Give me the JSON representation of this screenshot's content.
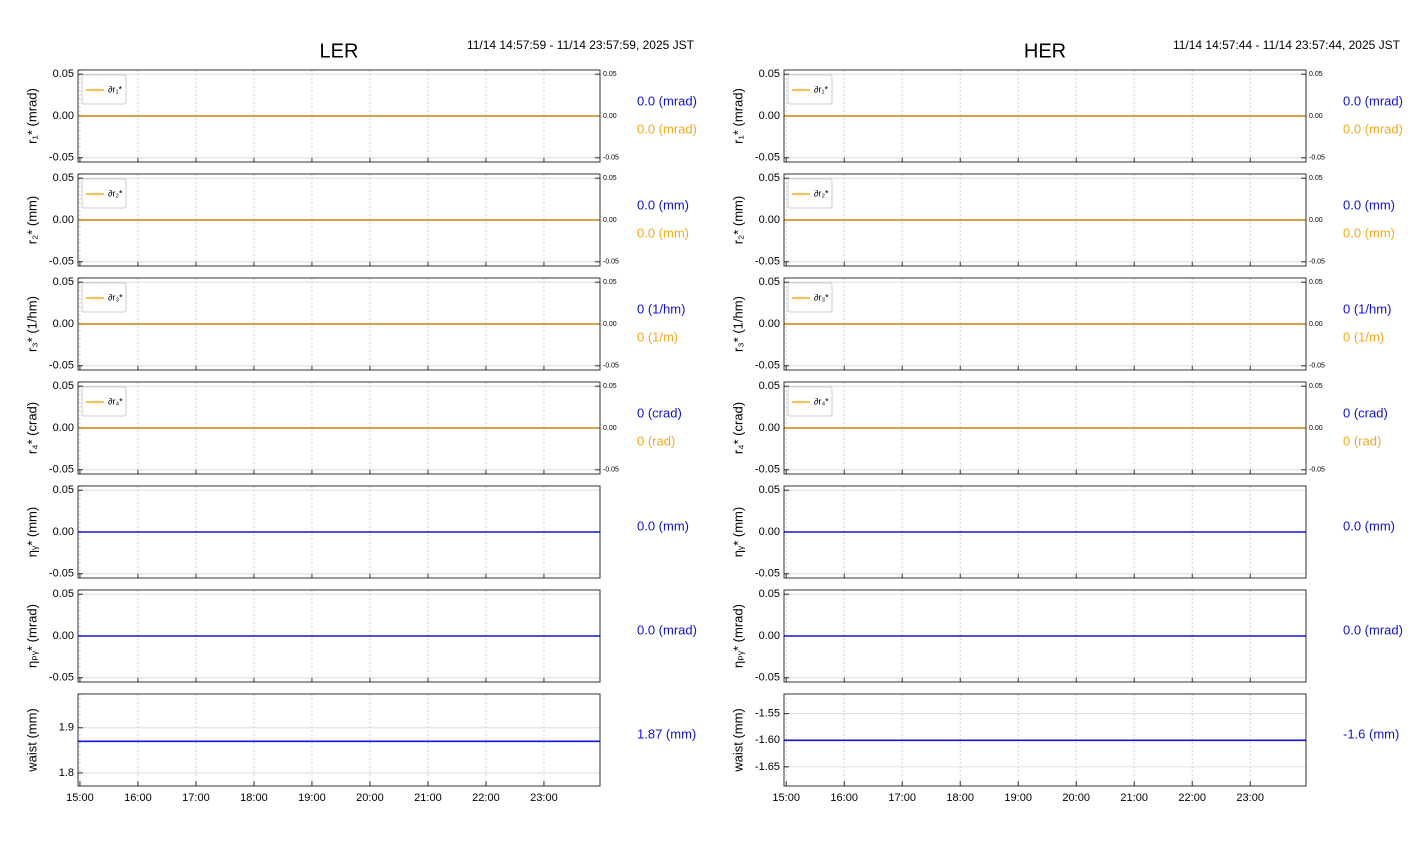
{
  "chart_data": [
    {
      "type": "line",
      "title": "LER",
      "subtitle": "11/14 14:57:59 - 11/14 23:57:59, 2025 JST",
      "y_label": "r₁* (mrad)",
      "xlim": [
        14.9664,
        23.9664
      ],
      "xticks": [
        15,
        16,
        17,
        18,
        19,
        20,
        21,
        22,
        23
      ],
      "ylim": [
        -0.055,
        0.055
      ],
      "yticks": [
        0.05,
        {
          "value": 0,
          "label": "0.00"
        },
        -0.05
      ],
      "y2lim": [
        -0.055,
        0.055
      ],
      "y2ticks": [
        0.05,
        {
          "value": 0,
          "label": "0.00"
        },
        -0.05
      ],
      "grid": true,
      "legend": "upper left",
      "series": [
        {
          "color": "#1010d8",
          "x": [
            14.9664,
            23.9664
          ],
          "values": [
            0,
            0
          ],
          "label": "0.0 (mrad)"
        },
        {
          "name": "∂r₁*",
          "color": "#f5a81c",
          "axis": "y2",
          "x": [
            14.9664,
            23.9664
          ],
          "values": [
            0,
            0
          ],
          "label": "0.0 (mrad)"
        }
      ]
    },
    {
      "type": "line",
      "y_label": "r₂* (mm)",
      "xlim": [
        14.9664,
        23.9664
      ],
      "xticks": [
        15,
        16,
        17,
        18,
        19,
        20,
        21,
        22,
        23
      ],
      "ylim": [
        -0.055,
        0.055
      ],
      "yticks": [
        0.05,
        {
          "value": 0,
          "label": "0.00"
        },
        -0.05
      ],
      "y2lim": [
        -0.055,
        0.055
      ],
      "y2ticks": [
        0.05,
        {
          "value": 0,
          "label": "0.00"
        },
        -0.05
      ],
      "grid": true,
      "legend": "upper left",
      "series": [
        {
          "color": "#1010d8",
          "x": [
            14.9664,
            23.9664
          ],
          "values": [
            0,
            0
          ],
          "label": "0.0 (mm)"
        },
        {
          "name": "∂r₂*",
          "color": "#f5a81c",
          "axis": "y2",
          "x": [
            14.9664,
            23.9664
          ],
          "values": [
            0,
            0
          ],
          "label": "0.0 (mm)"
        }
      ]
    },
    {
      "type": "line",
      "y_label": "r₃* (1/hm)",
      "xlim": [
        14.9664,
        23.9664
      ],
      "xticks": [
        15,
        16,
        17,
        18,
        19,
        20,
        21,
        22,
        23
      ],
      "ylim": [
        -0.055,
        0.055
      ],
      "yticks": [
        0.05,
        {
          "value": 0,
          "label": "0.00"
        },
        -0.05
      ],
      "y2lim": [
        -0.055,
        0.055
      ],
      "y2ticks": [
        0.05,
        {
          "value": 0,
          "label": "0.00"
        },
        -0.05
      ],
      "grid": true,
      "legend": "upper left",
      "series": [
        {
          "color": "#1010d8",
          "x": [
            14.9664,
            23.9664
          ],
          "values": [
            0,
            0
          ],
          "label": "0 (1/hm)"
        },
        {
          "name": "∂r₃*",
          "color": "#f5a81c",
          "axis": "y2",
          "x": [
            14.9664,
            23.9664
          ],
          "values": [
            0,
            0
          ],
          "label": "0 (1/m)"
        }
      ]
    },
    {
      "type": "line",
      "y_label": "r₄* (crad)",
      "xlim": [
        14.9664,
        23.9664
      ],
      "xticks": [
        15,
        16,
        17,
        18,
        19,
        20,
        21,
        22,
        23
      ],
      "ylim": [
        -0.055,
        0.055
      ],
      "yticks": [
        0.05,
        {
          "value": 0,
          "label": "0.00"
        },
        -0.05
      ],
      "y2lim": [
        -0.055,
        0.055
      ],
      "y2ticks": [
        0.05,
        {
          "value": 0,
          "label": "0.00"
        },
        -0.05
      ],
      "grid": true,
      "legend": "upper left",
      "series": [
        {
          "color": "#1010d8",
          "x": [
            14.9664,
            23.9664
          ],
          "values": [
            0,
            0
          ],
          "label": "0 (crad)"
        },
        {
          "name": "∂r₄*",
          "color": "#f5a81c",
          "axis": "y2",
          "x": [
            14.9664,
            23.9664
          ],
          "values": [
            0,
            0
          ],
          "label": "0 (rad)"
        }
      ]
    },
    {
      "type": "line",
      "y_label": "ηᵧ* (mm)",
      "xlim": [
        14.9664,
        23.9664
      ],
      "xticks": [
        15,
        16,
        17,
        18,
        19,
        20,
        21,
        22,
        23
      ],
      "ylim": [
        -0.055,
        0.055
      ],
      "yticks": [
        0.05,
        {
          "value": 0,
          "label": "0.00"
        },
        -0.05
      ],
      "grid": true,
      "series": [
        {
          "color": "#1010d8",
          "x": [
            14.9664,
            23.9664
          ],
          "values": [
            0,
            0
          ],
          "label": "0.0 (mm)"
        }
      ]
    },
    {
      "type": "line",
      "y_label": "ηₚᵧ* (mrad)",
      "xlim": [
        14.9664,
        23.9664
      ],
      "xticks": [
        15,
        16,
        17,
        18,
        19,
        20,
        21,
        22,
        23
      ],
      "ylim": [
        -0.055,
        0.055
      ],
      "yticks": [
        0.05,
        {
          "value": 0,
          "label": "0.00"
        },
        -0.05
      ],
      "grid": true,
      "series": [
        {
          "color": "#1010d8",
          "x": [
            14.9664,
            23.9664
          ],
          "values": [
            0,
            0
          ],
          "label": "0.0 (mrad)"
        }
      ]
    },
    {
      "type": "line",
      "y_label": "waist (mm)",
      "xlim": [
        14.9664,
        23.9664
      ],
      "xticks": [
        {
          "value": 15,
          "label": "15:00"
        },
        {
          "value": 16,
          "label": "16:00"
        },
        {
          "value": 17,
          "label": "17:00"
        },
        {
          "value": 18,
          "label": "18:00"
        },
        {
          "value": 19,
          "label": "19:00"
        },
        {
          "value": 20,
          "label": "20:00"
        },
        {
          "value": 21,
          "label": "21:00"
        },
        {
          "value": 22,
          "label": "22:00"
        },
        {
          "value": 23,
          "label": "23:00"
        }
      ],
      "ylim": [
        1.771,
        1.975
      ],
      "yticks": [
        1.9,
        1.8
      ],
      "grid": true,
      "series": [
        {
          "color": "#1010d8",
          "x": [
            14.9664,
            23.9664
          ],
          "values": [
            1.87,
            1.87
          ],
          "label": "1.87 (mm)"
        }
      ]
    },
    {
      "type": "line",
      "title": "HER",
      "subtitle": "11/14 14:57:44 - 11/14 23:57:44, 2025 JST",
      "y_label": "r₁* (mrad)",
      "xlim": [
        14.9622,
        23.9622
      ],
      "xticks": [
        15,
        16,
        17,
        18,
        19,
        20,
        21,
        22,
        23
      ],
      "ylim": [
        -0.055,
        0.055
      ],
      "yticks": [
        0.05,
        {
          "value": 0,
          "label": "0.00"
        },
        -0.05
      ],
      "y2lim": [
        -0.055,
        0.055
      ],
      "y2ticks": [
        0.05,
        {
          "value": 0,
          "label": "0.00"
        },
        -0.05
      ],
      "grid": true,
      "legend": "upper left",
      "series": [
        {
          "color": "#1010d8",
          "x": [
            14.9622,
            23.9622
          ],
          "values": [
            0,
            0
          ],
          "label": "0.0 (mrad)"
        },
        {
          "name": "∂r₁*",
          "color": "#f5a81c",
          "axis": "y2",
          "x": [
            14.9622,
            23.9622
          ],
          "values": [
            0,
            0
          ],
          "label": "0.0 (mrad)"
        }
      ]
    },
    {
      "type": "line",
      "y_label": "r₂* (mm)",
      "xlim": [
        14.9622,
        23.9622
      ],
      "xticks": [
        15,
        16,
        17,
        18,
        19,
        20,
        21,
        22,
        23
      ],
      "ylim": [
        -0.055,
        0.055
      ],
      "yticks": [
        0.05,
        {
          "value": 0,
          "label": "0.00"
        },
        -0.05
      ],
      "y2lim": [
        -0.055,
        0.055
      ],
      "y2ticks": [
        0.05,
        {
          "value": 0,
          "label": "0.00"
        },
        -0.05
      ],
      "grid": true,
      "legend": "upper left",
      "series": [
        {
          "color": "#1010d8",
          "x": [
            14.9622,
            23.9622
          ],
          "values": [
            0,
            0
          ],
          "label": "0.0 (mm)"
        },
        {
          "name": "∂r₂*",
          "color": "#f5a81c",
          "axis": "y2",
          "x": [
            14.9622,
            23.9622
          ],
          "values": [
            0,
            0
          ],
          "label": "0.0 (mm)"
        }
      ]
    },
    {
      "type": "line",
      "y_label": "r₃* (1/hm)",
      "xlim": [
        14.9622,
        23.9622
      ],
      "xticks": [
        15,
        16,
        17,
        18,
        19,
        20,
        21,
        22,
        23
      ],
      "ylim": [
        -0.055,
        0.055
      ],
      "yticks": [
        0.05,
        {
          "value": 0,
          "label": "0.00"
        },
        -0.05
      ],
      "y2lim": [
        -0.055,
        0.055
      ],
      "y2ticks": [
        0.05,
        {
          "value": 0,
          "label": "0.00"
        },
        -0.05
      ],
      "grid": true,
      "legend": "upper left",
      "series": [
        {
          "color": "#1010d8",
          "x": [
            14.9622,
            23.9622
          ],
          "values": [
            0,
            0
          ],
          "label": "0 (1/hm)"
        },
        {
          "name": "∂r₃*",
          "color": "#f5a81c",
          "axis": "y2",
          "x": [
            14.9622,
            23.9622
          ],
          "values": [
            0,
            0
          ],
          "label": "0 (1/m)"
        }
      ]
    },
    {
      "type": "line",
      "y_label": "r₄* (crad)",
      "xlim": [
        14.9622,
        23.9622
      ],
      "xticks": [
        15,
        16,
        17,
        18,
        19,
        20,
        21,
        22,
        23
      ],
      "ylim": [
        -0.055,
        0.055
      ],
      "yticks": [
        0.05,
        {
          "value": 0,
          "label": "0.00"
        },
        -0.05
      ],
      "y2lim": [
        -0.055,
        0.055
      ],
      "y2ticks": [
        0.05,
        {
          "value": 0,
          "label": "0.00"
        },
        -0.05
      ],
      "grid": true,
      "legend": "upper left",
      "series": [
        {
          "color": "#1010d8",
          "x": [
            14.9622,
            23.9622
          ],
          "values": [
            0,
            0
          ],
          "label": "0 (crad)"
        },
        {
          "name": "∂r₄*",
          "color": "#f5a81c",
          "axis": "y2",
          "x": [
            14.9622,
            23.9622
          ],
          "values": [
            0,
            0
          ],
          "label": "0 (rad)"
        }
      ]
    },
    {
      "type": "line",
      "y_label": "ηᵧ* (mm)",
      "xlim": [
        14.9622,
        23.9622
      ],
      "xticks": [
        15,
        16,
        17,
        18,
        19,
        20,
        21,
        22,
        23
      ],
      "ylim": [
        -0.055,
        0.055
      ],
      "yticks": [
        0.05,
        {
          "value": 0,
          "label": "0.00"
        },
        -0.05
      ],
      "grid": true,
      "series": [
        {
          "color": "#1010d8",
          "x": [
            14.9622,
            23.9622
          ],
          "values": [
            0,
            0
          ],
          "label": "0.0 (mm)"
        }
      ]
    },
    {
      "type": "line",
      "y_label": "ηₚᵧ* (mrad)",
      "xlim": [
        14.9622,
        23.9622
      ],
      "xticks": [
        15,
        16,
        17,
        18,
        19,
        20,
        21,
        22,
        23
      ],
      "ylim": [
        -0.055,
        0.055
      ],
      "yticks": [
        0.05,
        {
          "value": 0,
          "label": "0.00"
        },
        -0.05
      ],
      "grid": true,
      "series": [
        {
          "color": "#1010d8",
          "x": [
            14.9622,
            23.9622
          ],
          "values": [
            0,
            0
          ],
          "label": "0.0 (mrad)"
        }
      ]
    },
    {
      "type": "line",
      "y_label": "waist (mm)",
      "xlim": [
        14.9622,
        23.9622
      ],
      "xticks": [
        {
          "value": 15,
          "label": "15:00"
        },
        {
          "value": 16,
          "label": "16:00"
        },
        {
          "value": 17,
          "label": "17:00"
        },
        {
          "value": 18,
          "label": "18:00"
        },
        {
          "value": 19,
          "label": "19:00"
        },
        {
          "value": 20,
          "label": "20:00"
        },
        {
          "value": 21,
          "label": "21:00"
        },
        {
          "value": 22,
          "label": "22:00"
        },
        {
          "value": 23,
          "label": "23:00"
        }
      ],
      "ylim": [
        -1.686,
        -1.513
      ],
      "yticks": [
        -1.55,
        {
          "value": -1.6,
          "label": "-1.60"
        },
        -1.65
      ],
      "grid": true,
      "series": [
        {
          "color": "#1010d8",
          "x": [
            14.9622,
            23.9622
          ],
          "values": [
            -1.6,
            -1.6
          ],
          "label": "-1.6 (mm)"
        }
      ]
    }
  ]
}
